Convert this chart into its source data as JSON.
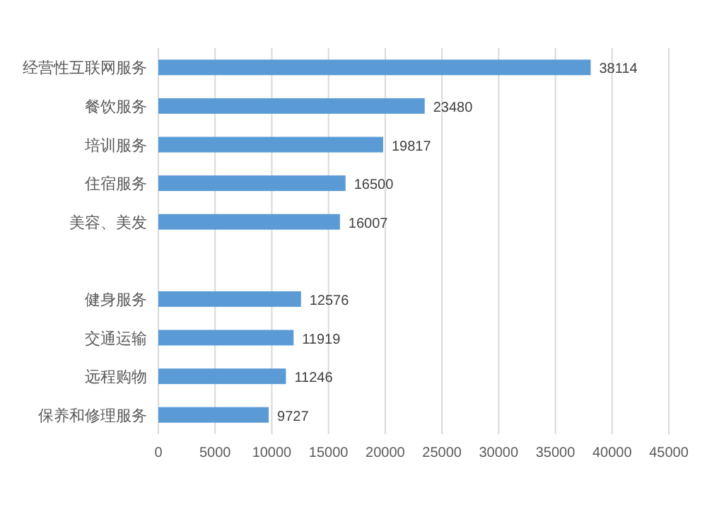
{
  "chart_data": {
    "type": "bar",
    "orientation": "horizontal",
    "categories": [
      "经营性互联网服务",
      "餐饮服务",
      "培训服务",
      "住宿服务",
      "美容、美发",
      null,
      "健身服务",
      "交通运输",
      "远程购物",
      "保养和修理服务"
    ],
    "values": [
      38114,
      23480,
      19817,
      16500,
      16007,
      null,
      12576,
      11919,
      11246,
      9727
    ],
    "color": "#5b9bd5",
    "xlim": [
      0,
      45000
    ],
    "xticks": [
      0,
      5000,
      10000,
      15000,
      20000,
      25000,
      30000,
      35000,
      40000,
      45000
    ],
    "grid": "x",
    "data_labels": true
  }
}
